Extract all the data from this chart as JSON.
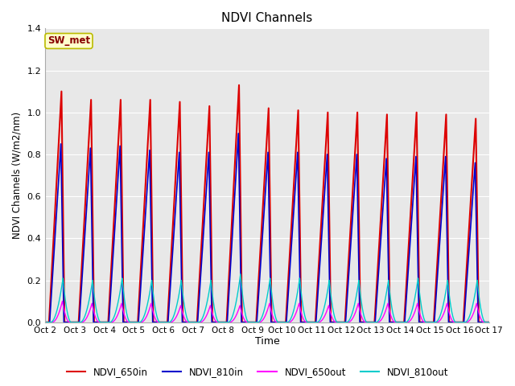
{
  "title": "NDVI Channels",
  "xlabel": "Time",
  "ylabel": "NDVI Channels (W/m2/nm)",
  "ylim": [
    0,
    1.4
  ],
  "plot_bg_color": "#e8e8e8",
  "grid_color": "#ffffff",
  "label_box_text": "SW_met",
  "label_box_facecolor": "#ffffcc",
  "label_box_edgecolor": "#bbbb00",
  "label_box_textcolor": "#880000",
  "channels": [
    "NDVI_650in",
    "NDVI_810in",
    "NDVI_650out",
    "NDVI_810out"
  ],
  "colors": [
    "#dd0000",
    "#0000cc",
    "#ff00ff",
    "#00cccc"
  ],
  "linewidths": [
    1.5,
    1.2,
    1.0,
    1.0
  ],
  "num_days": 15,
  "peak_650in": [
    1.1,
    1.06,
    1.06,
    1.06,
    1.05,
    1.03,
    1.13,
    1.02,
    1.01,
    1.0,
    1.0,
    0.99,
    1.0,
    0.99,
    0.97
  ],
  "peak_810in": [
    0.85,
    0.83,
    0.84,
    0.82,
    0.81,
    0.81,
    0.9,
    0.81,
    0.81,
    0.8,
    0.8,
    0.78,
    0.79,
    0.79,
    0.76
  ],
  "peak_650out": [
    0.1,
    0.09,
    0.09,
    0.09,
    0.08,
    0.08,
    0.08,
    0.09,
    0.09,
    0.08,
    0.09,
    0.09,
    0.09,
    0.09,
    0.09
  ],
  "peak_810out": [
    0.21,
    0.2,
    0.21,
    0.2,
    0.2,
    0.2,
    0.23,
    0.21,
    0.21,
    0.2,
    0.2,
    0.2,
    0.21,
    0.2,
    0.2
  ],
  "x_tick_labels": [
    "Oct 2",
    "Oct 3",
    "Oct 4",
    "Oct 5",
    "Oct 6",
    "Oct 7",
    "Oct 8",
    "Oct 9",
    "Oct 10",
    "Oct 11",
    "Oct 12",
    "Oct 13",
    "Oct 14",
    "Oct 15",
    "Oct 16",
    "Oct 17"
  ],
  "figsize": [
    6.4,
    4.8
  ],
  "dpi": 100
}
